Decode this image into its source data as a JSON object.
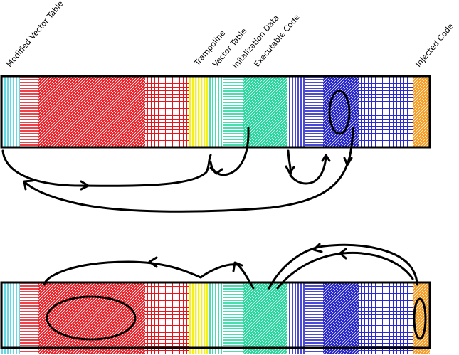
{
  "labels": {
    "modified_vector_table": "Modified Vector Table",
    "trampoline": "Trampoline",
    "vector_table": "Vector Table",
    "initialization_data": "Initalization Data",
    "executable_code": "Executable Code",
    "injected_code": "Injected Code"
  },
  "colors": {
    "cyan": "#22c7d8",
    "red": "#e8141c",
    "red_grid": "#e8141c",
    "yellow": "#f6f01a",
    "green": "#1fd39a",
    "blue": "#1c1cc8",
    "blue_grid": "#2a2ad0",
    "orange": "#f59a1c",
    "stroke": "#000000"
  },
  "icons": {
    "loop_marker": "ellipse-loop-icon",
    "flow_arrow": "arrowhead-icon"
  }
}
